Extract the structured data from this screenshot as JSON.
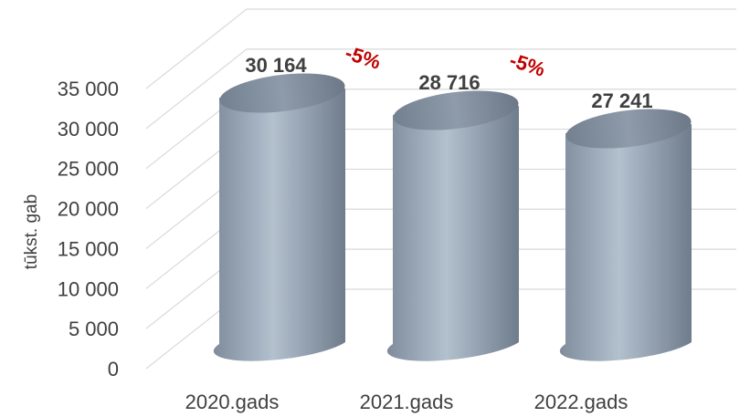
{
  "chart_data": {
    "type": "bar",
    "bar_shape": "cylinder-3d",
    "categories": [
      "2020.gads",
      "2021.gads",
      "2022.gads"
    ],
    "values": [
      30164,
      28716,
      27241
    ],
    "data_labels": [
      "30 164",
      "28 716",
      "27 241"
    ],
    "ylabel": "tūkst. gab",
    "ylim": [
      0,
      35000
    ],
    "yticks": [
      0,
      5000,
      10000,
      15000,
      20000,
      25000,
      30000,
      35000
    ],
    "ytick_labels": [
      "0",
      "5 000",
      "10 000",
      "15 000",
      "20 000",
      "25 000",
      "30 000",
      "35 000"
    ],
    "grid": true,
    "legend": "none",
    "annotations": [
      {
        "text": "-5%",
        "between": [
          "2020.gads",
          "2021.gads"
        ]
      },
      {
        "text": "-5%",
        "between": [
          "2021.gads",
          "2022.gads"
        ]
      }
    ],
    "colors": {
      "bar_fill": "#9aa8b8",
      "bar_top": "#8795a6",
      "annotation": "#c00000",
      "grid": "#d9d9d9",
      "text": "#404040"
    }
  }
}
